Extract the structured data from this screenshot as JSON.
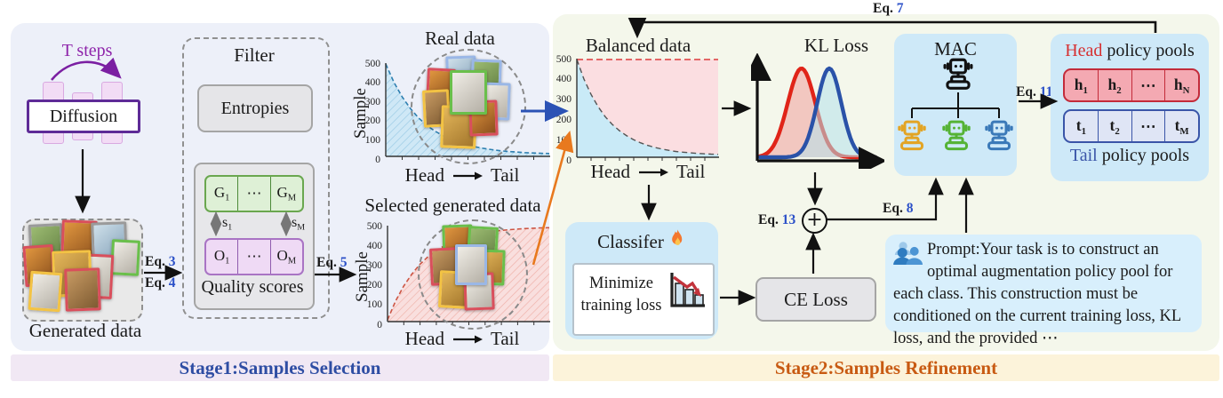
{
  "stage1": {
    "banner": "Stage1:Samples Selection",
    "t_steps_label": "T steps",
    "diffusion_label": "Diffusion",
    "generated_data_label": "Generated data",
    "filter": {
      "title": "Filter",
      "entropies_label": "Entropies",
      "g_items": [
        {
          "b": "G",
          "s": "1"
        },
        {
          "b": "⋯",
          "s": ""
        },
        {
          "b": "G",
          "s": "M"
        }
      ],
      "s_left": {
        "b": "s",
        "s": "1"
      },
      "s_right": {
        "b": "s",
        "s": "M"
      },
      "o_items": [
        {
          "b": "O",
          "s": "1"
        },
        {
          "b": "⋯",
          "s": ""
        },
        {
          "b": "O",
          "s": "M"
        }
      ],
      "quality_label": "Quality scores"
    },
    "eq3": {
      "pre": "Eq.",
      "num": "3"
    },
    "eq4": {
      "pre": "Eq.",
      "num": "4"
    },
    "eq5": {
      "pre": "Eq.",
      "num": "5"
    }
  },
  "stage2": {
    "banner": "Stage2:Samples Refinement",
    "mac_title": "MAC",
    "pools": {
      "head_word": "Head",
      "head_rest": " policy pools",
      "head_items": [
        {
          "b": "h",
          "s": "1"
        },
        {
          "b": "h",
          "s": "2"
        },
        {
          "b": "⋯",
          "s": ""
        },
        {
          "b": "h",
          "s": "N"
        }
      ],
      "tail_items": [
        {
          "b": "t",
          "s": "1"
        },
        {
          "b": "t",
          "s": "2"
        },
        {
          "b": "⋯",
          "s": ""
        },
        {
          "b": "t",
          "s": "M"
        }
      ],
      "tail_word": "Tail",
      "tail_rest": " policy pools"
    },
    "classifier": {
      "title": "Classifer",
      "inner_text": "Minimize training loss"
    },
    "ce_label": "CE Loss",
    "prompt_text": "Prompt:Your task is to construct an optimal augmentation policy pool for each class. This construction must be conditioned on the current training loss, KL loss, and the provided ⋯",
    "eq7": {
      "pre": "Eq.",
      "num": "7"
    },
    "eq8": {
      "pre": "Eq.",
      "num": "8"
    },
    "eq11": {
      "pre": "Eq.",
      "num": "11"
    },
    "eq13": {
      "pre": "Eq.",
      "num": "13"
    }
  },
  "chart_data": [
    {
      "id": "real",
      "type": "area",
      "title": "Real data",
      "ylabel": "Sample",
      "xlabel": {
        "head": "Head",
        "tail": "Tail"
      },
      "yticks": [
        0,
        100,
        200,
        300,
        400,
        500
      ],
      "ylim": [
        0,
        500
      ],
      "x": [
        0,
        0.05,
        0.1,
        0.15,
        0.2,
        0.25,
        0.3,
        0.35,
        0.4,
        0.45,
        0.5,
        0.55,
        0.6,
        0.65,
        0.7,
        0.75,
        0.8,
        0.85,
        0.9,
        0.95,
        1
      ],
      "y": [
        500,
        399,
        319,
        255,
        203,
        162,
        130,
        104,
        83,
        66,
        53,
        42,
        34,
        27,
        21,
        17,
        14,
        11,
        9,
        7,
        6
      ]
    },
    {
      "id": "selected",
      "type": "area",
      "title": "Selected generated data",
      "ylabel": "Sample",
      "xlabel": {
        "head": "Head",
        "tail": "Tail"
      },
      "yticks": [
        0,
        100,
        200,
        300,
        400,
        500
      ],
      "ylim": [
        0,
        500
      ],
      "x": [
        0,
        0.05,
        0.1,
        0.15,
        0.2,
        0.25,
        0.3,
        0.35,
        0.4,
        0.45,
        0.5,
        0.55,
        0.6,
        0.65,
        0.7,
        0.75,
        0.8,
        0.85,
        0.9,
        0.95,
        1
      ],
      "y": [
        0,
        101,
        181,
        245,
        297,
        338,
        370,
        396,
        417,
        434,
        447,
        458,
        466,
        473,
        479,
        483,
        486,
        489,
        491,
        493,
        494
      ]
    },
    {
      "id": "balanced",
      "type": "stacked-area",
      "title": "Balanced data",
      "xlabel": {
        "head": "Head",
        "tail": "Tail"
      },
      "yticks": [
        0,
        100,
        200,
        300,
        400,
        500
      ],
      "ylim": [
        0,
        500
      ],
      "upper_level": 500,
      "x": [
        0,
        0.05,
        0.1,
        0.15,
        0.2,
        0.25,
        0.3,
        0.35,
        0.4,
        0.45,
        0.5,
        0.55,
        0.6,
        0.65,
        0.7,
        0.75,
        0.8,
        0.85,
        0.9,
        0.95,
        1
      ],
      "y": [
        500,
        399,
        319,
        255,
        203,
        162,
        130,
        104,
        83,
        66,
        53,
        42,
        34,
        27,
        21,
        17,
        14,
        11,
        9,
        7,
        6
      ]
    },
    {
      "id": "kl",
      "type": "density",
      "title": "KL Loss",
      "series": [
        {
          "color": "#e02418",
          "fill": "rgba(240,140,140,0.45)",
          "mu": 0.36,
          "sigma": 0.12
        },
        {
          "color": "#2a52a8",
          "fill": "rgba(180,225,235,0.55)",
          "mu": 0.6,
          "sigma": 0.105
        }
      ]
    }
  ]
}
